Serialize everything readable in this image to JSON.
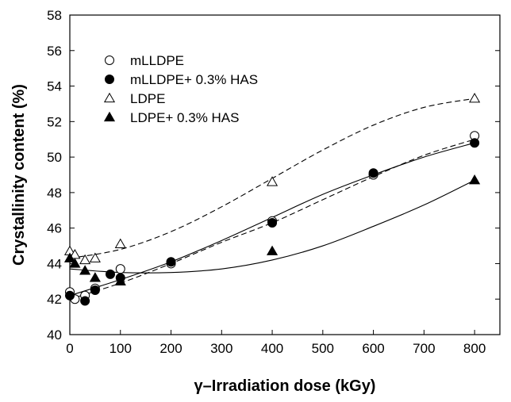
{
  "chart_data": {
    "type": "scatter",
    "title": "",
    "xlabel": "γ–Irradiation dose (kGy)",
    "ylabel": "Crystallinity content (%)",
    "xlim": [
      0,
      850
    ],
    "ylim": [
      40,
      58
    ],
    "x_ticks": [
      0,
      100,
      200,
      300,
      400,
      500,
      600,
      700,
      800
    ],
    "y_ticks": [
      40,
      42,
      44,
      46,
      48,
      50,
      52,
      54,
      56,
      58
    ],
    "grid": false,
    "legend_position": "top-left",
    "series": [
      {
        "name": "mLLDPE",
        "marker": "circle-open",
        "fit_line": "dashed",
        "x": [
          0,
          10,
          30,
          50,
          100,
          200,
          400,
          600,
          800
        ],
        "y": [
          42.4,
          42.0,
          42.2,
          42.6,
          43.7,
          44.0,
          46.4,
          49.0,
          51.2
        ],
        "fit_x": [
          0,
          100,
          200,
          300,
          400,
          500,
          600,
          700,
          800
        ],
        "fit_y": [
          42.0,
          42.9,
          44.0,
          45.2,
          46.3,
          47.6,
          48.9,
          50.1,
          51.0
        ]
      },
      {
        "name": "mLLDPE+ 0.3% HAS",
        "marker": "circle-filled",
        "fit_line": "solid",
        "x": [
          0,
          30,
          50,
          80,
          100,
          200,
          400,
          600,
          800
        ],
        "y": [
          42.2,
          41.9,
          42.5,
          43.4,
          43.2,
          44.1,
          46.3,
          49.1,
          50.8
        ],
        "fit_x": [
          0,
          100,
          200,
          300,
          400,
          500,
          600,
          700,
          800
        ],
        "fit_y": [
          42.2,
          43.1,
          44.1,
          45.3,
          46.6,
          47.9,
          49.0,
          50.0,
          50.8
        ]
      },
      {
        "name": "LDPE",
        "marker": "triangle-open",
        "fit_line": "dashed",
        "x": [
          0,
          10,
          30,
          50,
          100,
          400,
          800
        ],
        "y": [
          44.7,
          44.5,
          44.2,
          44.3,
          45.1,
          48.6,
          53.3
        ],
        "fit_x": [
          0,
          100,
          200,
          300,
          400,
          500,
          600,
          700,
          800
        ],
        "fit_y": [
          44.3,
          44.8,
          45.8,
          47.2,
          48.8,
          50.4,
          51.8,
          52.8,
          53.3
        ]
      },
      {
        "name": "LDPE+ 0.3% HAS",
        "marker": "triangle-filled",
        "fit_line": "solid",
        "x": [
          0,
          10,
          30,
          50,
          100,
          400,
          800
        ],
        "y": [
          44.3,
          44.0,
          43.6,
          43.2,
          43.0,
          44.7,
          48.7
        ],
        "fit_x": [
          0,
          100,
          200,
          300,
          400,
          500,
          600,
          700,
          800
        ],
        "fit_y": [
          43.7,
          43.5,
          43.5,
          43.7,
          44.2,
          45.0,
          46.1,
          47.3,
          48.7
        ]
      }
    ]
  }
}
